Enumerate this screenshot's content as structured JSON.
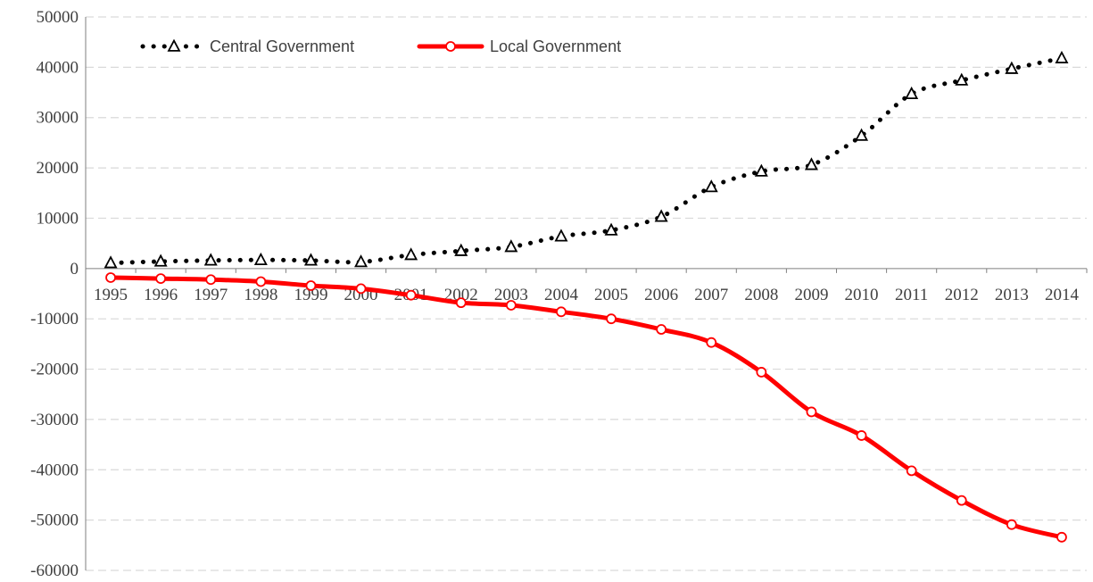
{
  "chart_data": {
    "type": "line",
    "title": "",
    "xlabel": "",
    "ylabel": "",
    "categories": [
      "1995",
      "1996",
      "1997",
      "1998",
      "1999",
      "2000",
      "2001",
      "2002",
      "2003",
      "2004",
      "2005",
      "2006",
      "2007",
      "2008",
      "2009",
      "2010",
      "2011",
      "2012",
      "2013",
      "2014"
    ],
    "ylim": [
      -60000,
      50000
    ],
    "yticks": [
      50000,
      40000,
      30000,
      20000,
      10000,
      0,
      -10000,
      -20000,
      -30000,
      -40000,
      -50000,
      -60000
    ],
    "ytick_labels": [
      "50000",
      "40000",
      "30000",
      "20000",
      "10000",
      "0",
      "-10000",
      "-20000",
      "-30000",
      "-40000",
      "-50000",
      "-60000"
    ],
    "grid": {
      "horizontal": true,
      "style": "dashed",
      "color": "#d9d9d9"
    },
    "legend": {
      "placement": "top-left",
      "orientation": "horizontal"
    },
    "series": [
      {
        "name": "Central Government",
        "color": "#000000",
        "line_style": "dotted",
        "marker": "triangle-open",
        "values": [
          1100,
          1400,
          1600,
          1700,
          1600,
          1300,
          2700,
          3500,
          4300,
          6400,
          7600,
          10300,
          16200,
          19300,
          20600,
          26400,
          34700,
          37400,
          39700,
          41800
        ]
      },
      {
        "name": "Local Government",
        "color": "#ff0000",
        "line_style": "solid",
        "marker": "circle-open",
        "values": [
          -1800,
          -2000,
          -2200,
          -2600,
          -3400,
          -4000,
          -5300,
          -6800,
          -7300,
          -8600,
          -10000,
          -12100,
          -14700,
          -20600,
          -28500,
          -33200,
          -40200,
          -46100,
          -50900,
          -53400
        ]
      }
    ]
  }
}
